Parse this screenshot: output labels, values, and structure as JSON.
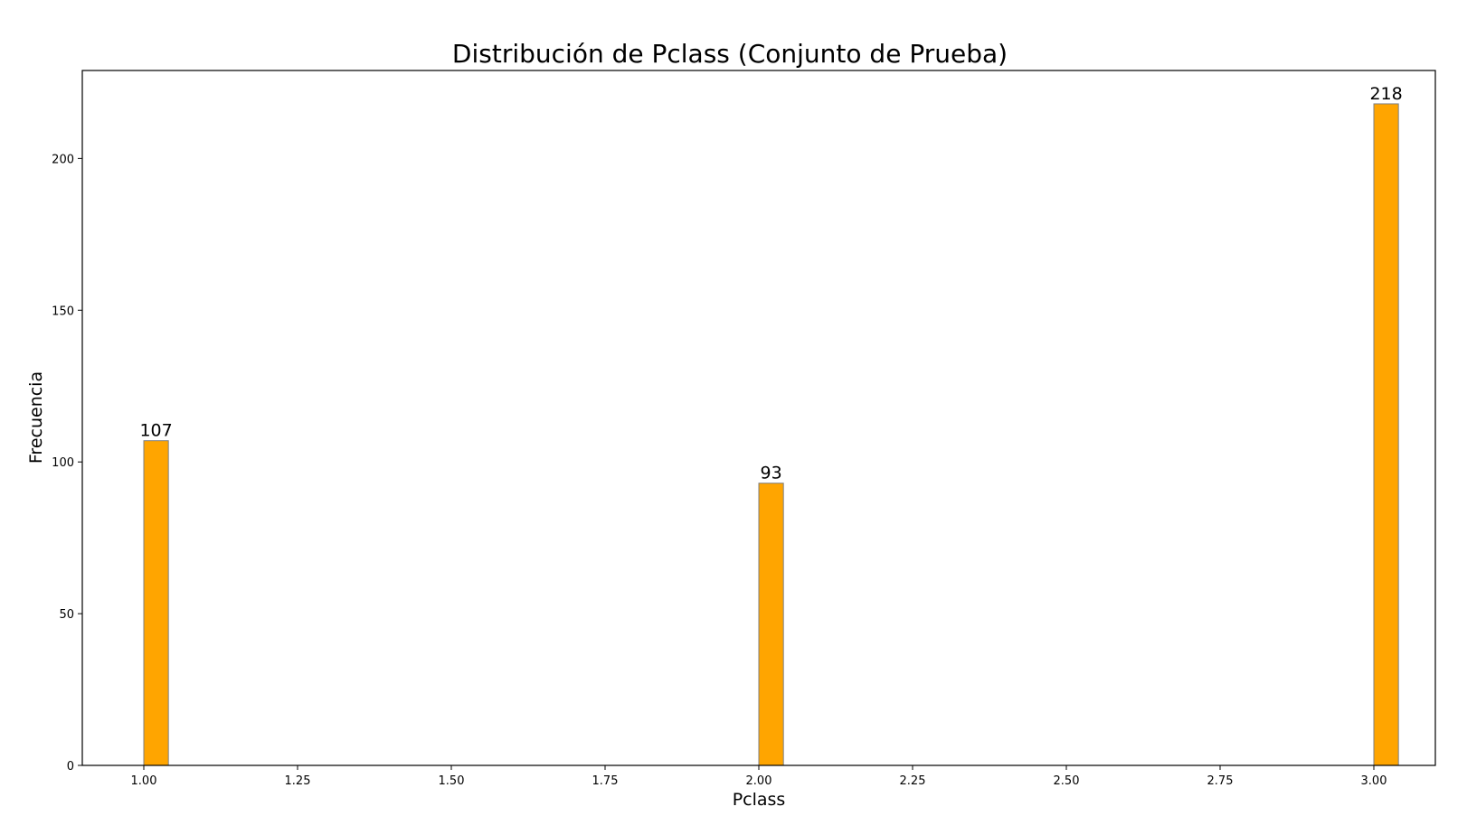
{
  "chart_data": {
    "type": "bar",
    "title": "Distribución de Pclass (Conjunto de Prueba)",
    "xlabel": "Pclass",
    "ylabel": "Frecuencia",
    "x": [
      1.0,
      2.0,
      3.0
    ],
    "values": [
      107,
      93,
      218
    ],
    "bar_labels": [
      "107",
      "93",
      "218"
    ],
    "xlim": [
      0.9,
      3.1
    ],
    "ylim": [
      0,
      229
    ],
    "x_ticks": [
      1.0,
      1.25,
      1.5,
      1.75,
      2.0,
      2.25,
      2.5,
      2.75,
      3.0
    ],
    "x_tick_labels": [
      "1.00",
      "1.25",
      "1.50",
      "1.75",
      "2.00",
      "2.25",
      "2.50",
      "2.75",
      "3.00"
    ],
    "y_ticks": [
      0,
      50,
      100,
      150,
      200
    ],
    "y_tick_labels": [
      "0",
      "50",
      "100",
      "150",
      "200"
    ],
    "bar_width": 0.04,
    "grid": false,
    "legend": "none",
    "colors": {
      "bar_fill": "#ffa500",
      "bar_edge": "#7f7f7f"
    }
  }
}
